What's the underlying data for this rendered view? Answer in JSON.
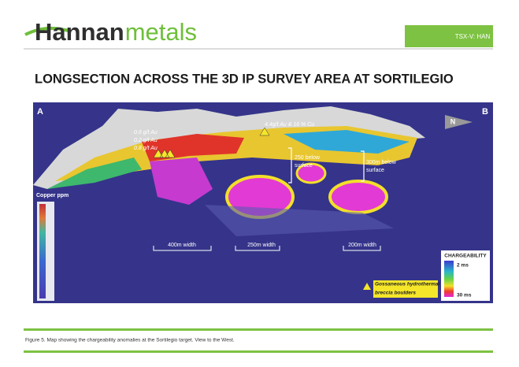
{
  "header": {
    "logo_bold": "Hannan",
    "logo_light": "metals",
    "ticker": "TSX-V: HAN"
  },
  "title": "LONGSECTION ACROSS THE 3D IP SURVEY AREA AT SORTILEGIO",
  "figure": {
    "corner_a": "A",
    "corner_b": "B",
    "north": "N",
    "assays_left": [
      "0.6 g/t Au",
      "0.2 g/t Au",
      "0.8 g/t Au"
    ],
    "assay_top": "4.4g/t Au & 16 % Cu",
    "depth_1": [
      "250 below",
      "surface"
    ],
    "depth_2": [
      "300m below",
      "surface"
    ],
    "widths": [
      "400m width",
      "250m width",
      "200m width"
    ],
    "copper_title": "Copper ppm",
    "chargeability": {
      "title": "CHARGEABILITY",
      "low": "2 ms",
      "high": "30 ms"
    },
    "boulders": [
      "Gossaneous hydrothermal",
      "breccia boulders"
    ]
  },
  "caption": "Figure 5. Map showing the chargeability anomalies at the Sortilegio  target. View to the West."
}
